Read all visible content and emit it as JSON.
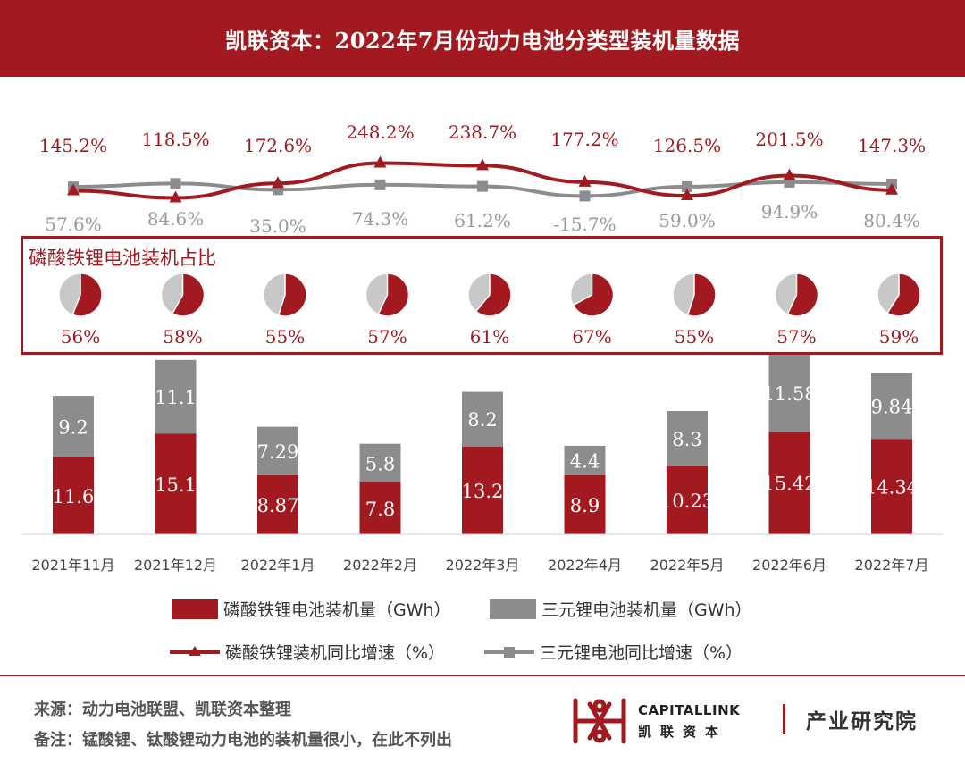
{
  "header": {
    "title": "凯联资本：2022年7月份动力电池分类型装机量数据"
  },
  "pie_box": {
    "title": "磷酸铁锂电池装机占比"
  },
  "colors": {
    "lfp": "#a2191f",
    "ternary": "#8c8c8c",
    "ternary_light": "#c8c8c8",
    "header_bg": "#a2191f"
  },
  "chart_data": {
    "type": "bar",
    "stacked": true,
    "categories": [
      "2021年11月",
      "2021年12月",
      "2022年1月",
      "2022年2月",
      "2022年3月",
      "2022年4月",
      "2022年5月",
      "2022年6月",
      "2022年7月"
    ],
    "series": [
      {
        "name": "磷酸铁锂电池装机量（GWh）",
        "values": [
          11.6,
          15.1,
          8.87,
          7.8,
          13.2,
          8.9,
          10.23,
          15.42,
          14.34
        ],
        "labels": [
          "11.6",
          "15.1",
          "8.87",
          "7.8",
          "13.2",
          "8.9",
          "10.23",
          "15.42",
          "14.34"
        ]
      },
      {
        "name": "三元锂电池装机量（GWh）",
        "values": [
          9.2,
          11.1,
          7.29,
          5.8,
          8.2,
          4.4,
          8.3,
          11.58,
          9.84
        ],
        "labels": [
          "9.2",
          "11.1",
          "7.29",
          "5.8",
          "8.2",
          "4.4",
          "8.3",
          "11.58",
          "9.84"
        ]
      }
    ],
    "growth_series": [
      {
        "name": "磷酸铁锂装机同比增速（%）",
        "values": [
          145.2,
          118.5,
          172.6,
          248.2,
          238.7,
          177.2,
          126.5,
          201.5,
          147.3
        ],
        "labels": [
          "145.2%",
          "118.5%",
          "172.6%",
          "248.2%",
          "238.7%",
          "177.2%",
          "126.5%",
          "201.5%",
          "147.3%"
        ]
      },
      {
        "name": "三元锂电池同比增速（%）",
        "values": [
          57.6,
          84.6,
          35.0,
          74.3,
          61.2,
          -15.7,
          59.0,
          94.9,
          80.4
        ],
        "labels": [
          "57.6%",
          "84.6%",
          "35.0%",
          "74.3%",
          "61.2%",
          "-15.7%",
          "59.0%",
          "94.9%",
          "80.4%"
        ]
      }
    ],
    "lfp_share": {
      "values": [
        56,
        58,
        55,
        57,
        61,
        67,
        55,
        57,
        59
      ],
      "labels": [
        "56%",
        "58%",
        "55%",
        "57%",
        "61%",
        "67%",
        "55%",
        "57%",
        "59%"
      ]
    }
  },
  "legend": {
    "lfp_bar": "磷酸铁锂电池装机量（GWh）",
    "ternary_bar": "三元锂电池装机量（GWh）",
    "lfp_line": "磷酸铁锂装机同比增速（%）",
    "ternary_line": "三元锂电池同比增速（%）"
  },
  "footer": {
    "source": "来源：动力电池联盟、凯联资本整理",
    "note": "备注：锰酸锂、钛酸锂动力电池的装机量很小，在此不列出"
  },
  "logo": {
    "en": "CAPITALLINK",
    "cn": "凯联资本",
    "institute": "产业研究院",
    "icon": "capitallink-logo-icon"
  }
}
